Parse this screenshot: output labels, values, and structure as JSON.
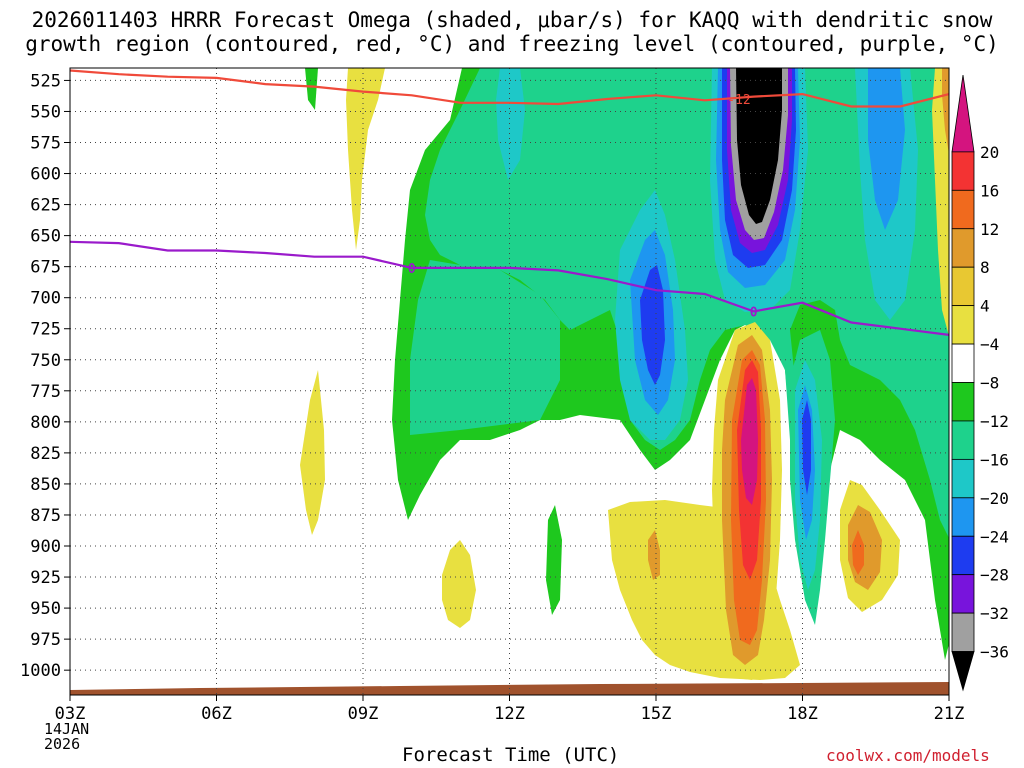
{
  "title_line1": "2026011403 HRRR Forecast Omega (shaded, μbar/s) for KAQQ with dendritic snow",
  "title_line2": "growth region (contoured, red, °C) and freezing level (contoured, purple, °C)",
  "credit": "coolwx.com/models",
  "chart_data": {
    "type": "heatmap",
    "xlabel": "Forecast Time (UTC)",
    "x_ticks": [
      "03Z",
      "06Z",
      "09Z",
      "12Z",
      "15Z",
      "18Z",
      "21Z"
    ],
    "x_range_hours": [
      3,
      21
    ],
    "date_label": [
      "14JAN",
      "2026"
    ],
    "y_ticks_mb": [
      525,
      550,
      575,
      600,
      625,
      650,
      675,
      700,
      725,
      750,
      775,
      800,
      825,
      850,
      875,
      900,
      925,
      950,
      975,
      1000
    ],
    "y_range_mb": [
      515,
      1020
    ],
    "colorbar": {
      "labels": [
        "20",
        "16",
        "12",
        "8",
        "4",
        "−4",
        "−8",
        "−12",
        "−16",
        "−20",
        "−24",
        "−28",
        "−32",
        "−36"
      ],
      "colors": [
        "#d4147f",
        "#f33333",
        "#f06a1e",
        "#e09a2c",
        "#e8c832",
        "#e8e040",
        "#ffffff",
        "#1ec81e",
        "#1ed28c",
        "#1ec8c8",
        "#1e96f0",
        "#1e3cf0",
        "#7814dc",
        "#a0a0a0",
        "#000000"
      ]
    },
    "series": [
      {
        "name": "dendritic snow growth region (-12 °C)",
        "color": "#f04a3a",
        "contour_label": "-12",
        "points": [
          [
            3,
            517
          ],
          [
            4,
            520
          ],
          [
            5,
            522
          ],
          [
            6,
            523
          ],
          [
            7,
            528
          ],
          [
            8,
            530
          ],
          [
            9,
            534
          ],
          [
            10,
            537
          ],
          [
            11,
            543
          ],
          [
            12,
            543
          ],
          [
            13,
            544
          ],
          [
            14,
            540
          ],
          [
            15,
            537
          ],
          [
            16,
            541
          ],
          [
            17,
            538
          ],
          [
            18,
            536
          ],
          [
            19,
            546
          ],
          [
            20,
            546
          ],
          [
            21,
            536
          ]
        ]
      },
      {
        "name": "freezing level (0 °C)",
        "color": "#9a1acb",
        "contour_label": "0",
        "points": [
          [
            3,
            655
          ],
          [
            4,
            656
          ],
          [
            5,
            662
          ],
          [
            6,
            662
          ],
          [
            7,
            664
          ],
          [
            8,
            667
          ],
          [
            9,
            667
          ],
          [
            10,
            676
          ],
          [
            11,
            676
          ],
          [
            12,
            676
          ],
          [
            13,
            678
          ],
          [
            14,
            685
          ],
          [
            15,
            694
          ],
          [
            16,
            697
          ],
          [
            17,
            711
          ],
          [
            18,
            704
          ],
          [
            19,
            720
          ],
          [
            20,
            725
          ],
          [
            21,
            730
          ]
        ]
      }
    ]
  }
}
